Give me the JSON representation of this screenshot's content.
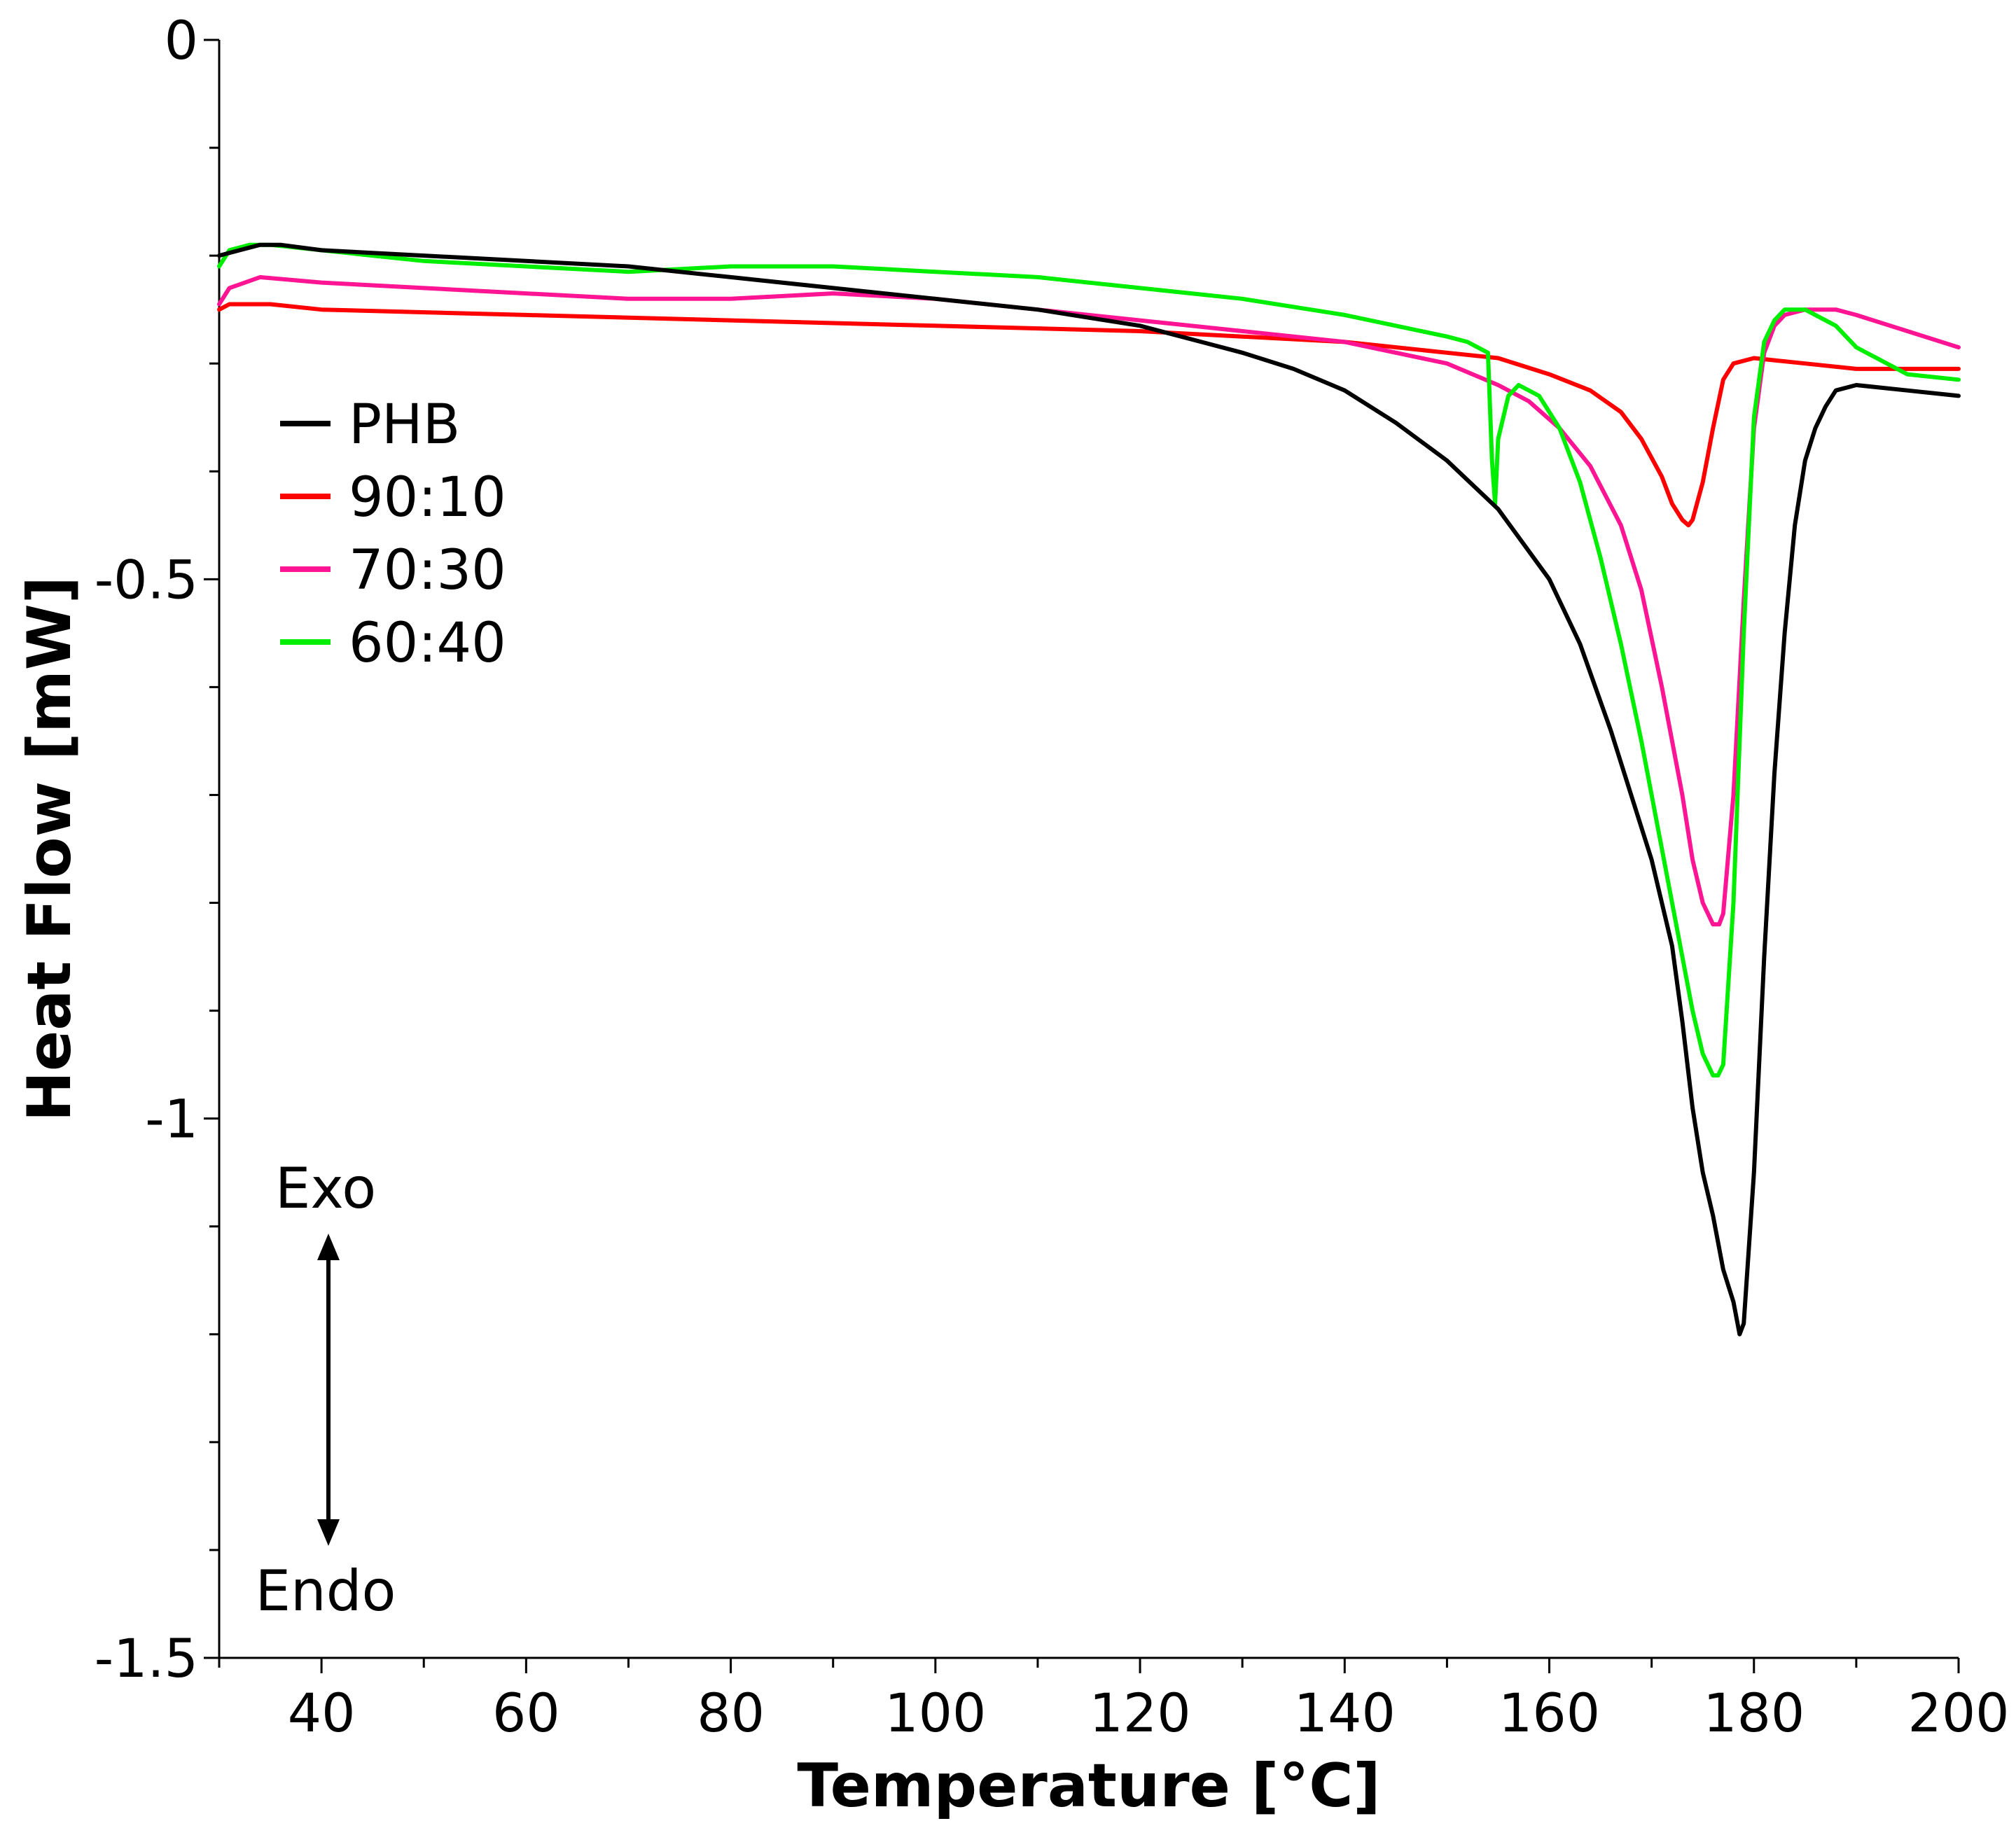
{
  "chart_data": {
    "type": "line",
    "title": "",
    "xlabel": "Temperature [°C]",
    "ylabel": "Heat Flow [mW]",
    "xlim": [
      30,
      200
    ],
    "ylim": [
      -1.5,
      0
    ],
    "xticks": [
      40,
      60,
      80,
      100,
      120,
      140,
      160,
      180,
      200
    ],
    "xtick_labels": [
      "40",
      "60",
      "80",
      "100",
      "120",
      "140",
      "160",
      "180",
      "200"
    ],
    "yticks": [
      0,
      -0.5,
      -1,
      -1.5
    ],
    "ytick_labels": [
      "0",
      "-0.5",
      "-1",
      "-1.5"
    ],
    "legend_position": "upper-left",
    "annotations": {
      "exo": "Exo",
      "endo": "Endo"
    },
    "series": [
      {
        "name": "PHB",
        "color": "#000000",
        "x": [
          30,
          32,
          34,
          36,
          40,
          50,
          60,
          70,
          80,
          90,
          100,
          110,
          120,
          126,
          130,
          135,
          140,
          145,
          150,
          155,
          160,
          163,
          166,
          168,
          170,
          172,
          173,
          174,
          175,
          176,
          177,
          178,
          178.6,
          179,
          180,
          181,
          182,
          183,
          184,
          185,
          186,
          187,
          188,
          190,
          195,
          200
        ],
        "y": [
          -0.2,
          -0.195,
          -0.19,
          -0.19,
          -0.195,
          -0.2,
          -0.205,
          -0.21,
          -0.22,
          -0.23,
          -0.24,
          -0.25,
          -0.265,
          -0.28,
          -0.29,
          -0.305,
          -0.325,
          -0.355,
          -0.39,
          -0.435,
          -0.5,
          -0.56,
          -0.64,
          -0.7,
          -0.76,
          -0.84,
          -0.91,
          -0.99,
          -1.05,
          -1.09,
          -1.14,
          -1.17,
          -1.2,
          -1.19,
          -1.05,
          -0.85,
          -0.68,
          -0.55,
          -0.45,
          -0.39,
          -0.36,
          -0.34,
          -0.325,
          -0.32,
          -0.325,
          -0.33
        ]
      },
      {
        "name": "90:10",
        "color": "#ff0000",
        "x": [
          30,
          31,
          35,
          40,
          60,
          80,
          100,
          120,
          140,
          150,
          155,
          160,
          164,
          167,
          169,
          171,
          172,
          173,
          173.6,
          174,
          175,
          176,
          177,
          178,
          180,
          182,
          185,
          190,
          195,
          200
        ],
        "y": [
          -0.25,
          -0.245,
          -0.245,
          -0.25,
          -0.255,
          -0.26,
          -0.265,
          -0.27,
          -0.28,
          -0.29,
          -0.295,
          -0.31,
          -0.325,
          -0.345,
          -0.37,
          -0.405,
          -0.43,
          -0.445,
          -0.45,
          -0.445,
          -0.41,
          -0.36,
          -0.315,
          -0.3,
          -0.295,
          -0.297,
          -0.3,
          -0.305,
          -0.305,
          -0.305
        ]
      },
      {
        "name": "70:30",
        "color": "#ff1493",
        "x": [
          30,
          31,
          34,
          40,
          50,
          60,
          70,
          80,
          90,
          100,
          110,
          120,
          130,
          140,
          145,
          150,
          155,
          158,
          161,
          164,
          167,
          169,
          171,
          173,
          174,
          175,
          176,
          176.6,
          177,
          178,
          179,
          180,
          181,
          182,
          183,
          185,
          188,
          190,
          195,
          200
        ],
        "y": [
          -0.245,
          -0.23,
          -0.22,
          -0.225,
          -0.23,
          -0.235,
          -0.24,
          -0.24,
          -0.235,
          -0.24,
          -0.25,
          -0.26,
          -0.27,
          -0.28,
          -0.29,
          -0.3,
          -0.32,
          -0.335,
          -0.36,
          -0.395,
          -0.45,
          -0.51,
          -0.6,
          -0.7,
          -0.76,
          -0.8,
          -0.82,
          -0.82,
          -0.81,
          -0.7,
          -0.52,
          -0.36,
          -0.29,
          -0.265,
          -0.255,
          -0.25,
          -0.25,
          -0.255,
          -0.27,
          -0.285
        ]
      },
      {
        "name": "60:40",
        "color": "#00ee00",
        "x": [
          30,
          31,
          33,
          35,
          40,
          50,
          60,
          70,
          80,
          90,
          100,
          110,
          120,
          130,
          140,
          145,
          150,
          152,
          154,
          154.4,
          154.7,
          155,
          156,
          157,
          159,
          161,
          163,
          165,
          167,
          169,
          171,
          173,
          174,
          175,
          176,
          176.5,
          177,
          178,
          179,
          180,
          181,
          182,
          183,
          185,
          188,
          190,
          195,
          200
        ],
        "y": [
          -0.21,
          -0.195,
          -0.19,
          -0.19,
          -0.195,
          -0.205,
          -0.21,
          -0.215,
          -0.21,
          -0.21,
          -0.215,
          -0.22,
          -0.23,
          -0.24,
          -0.255,
          -0.265,
          -0.275,
          -0.28,
          -0.29,
          -0.39,
          -0.43,
          -0.37,
          -0.33,
          -0.32,
          -0.33,
          -0.36,
          -0.41,
          -0.48,
          -0.56,
          -0.65,
          -0.75,
          -0.85,
          -0.9,
          -0.94,
          -0.96,
          -0.96,
          -0.95,
          -0.8,
          -0.55,
          -0.35,
          -0.28,
          -0.26,
          -0.25,
          -0.25,
          -0.265,
          -0.285,
          -0.31,
          -0.315
        ]
      }
    ]
  }
}
